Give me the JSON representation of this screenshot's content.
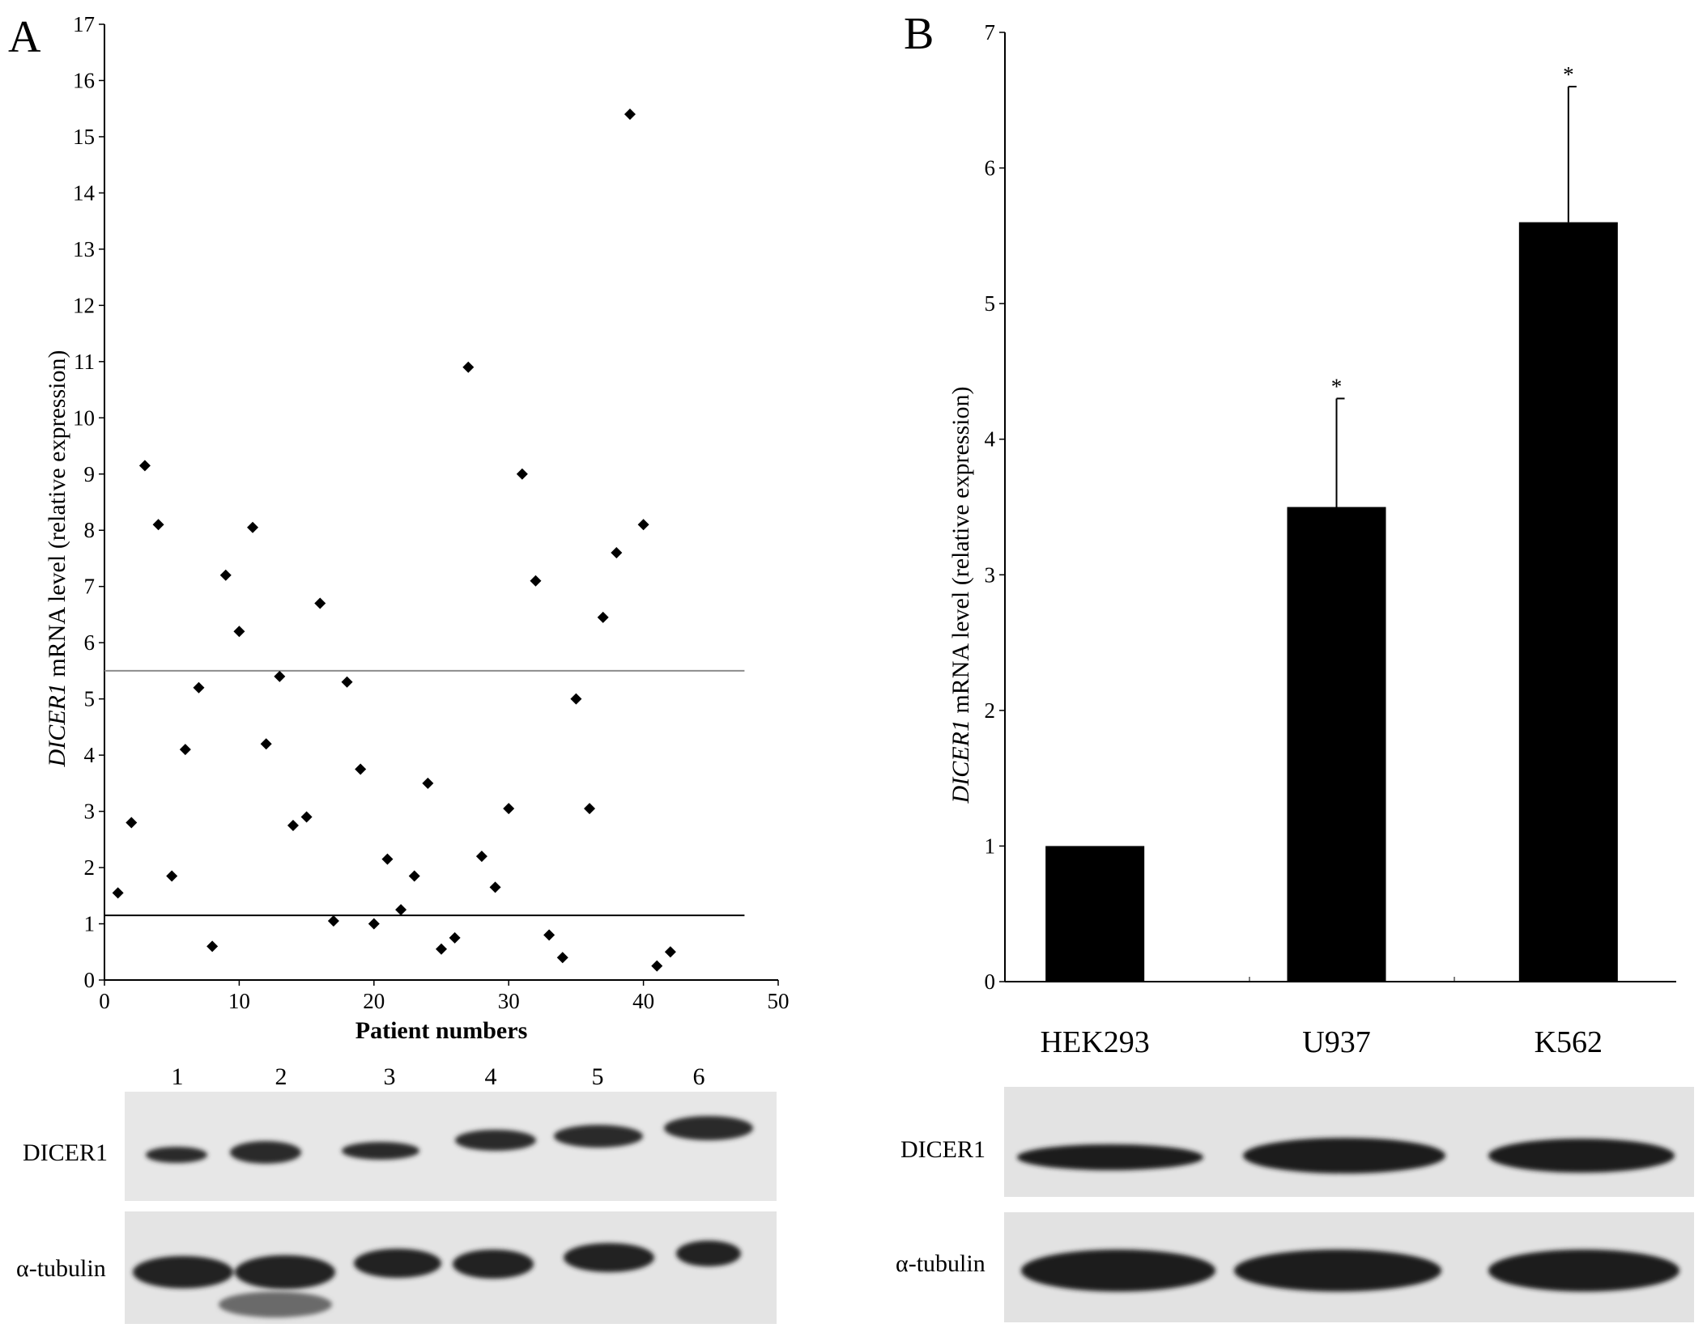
{
  "panels": {
    "a_letter": "A",
    "b_letter": "B"
  },
  "chart_data": [
    {
      "type": "scatter",
      "panel": "A",
      "title": "",
      "xlabel": "Patient numbers",
      "ylabel_italic": "DICER1",
      "ylabel_rest": " mRNA level (relative expression)",
      "xlim": [
        0,
        50
      ],
      "ylim": [
        0,
        17
      ],
      "xticks": [
        0,
        10,
        20,
        30,
        40,
        50
      ],
      "yticks": [
        0,
        1,
        2,
        3,
        4,
        5,
        6,
        7,
        8,
        9,
        10,
        11,
        12,
        13,
        14,
        15,
        16,
        17
      ],
      "marker": "diamond",
      "reference_lines": [
        {
          "y": 5.5,
          "color": "#8c8c8c"
        },
        {
          "y": 1.15,
          "color": "#000000"
        }
      ],
      "points": [
        {
          "x": 1,
          "y": 1.55
        },
        {
          "x": 2,
          "y": 2.8
        },
        {
          "x": 3,
          "y": 9.15
        },
        {
          "x": 4,
          "y": 8.1
        },
        {
          "x": 5,
          "y": 1.85
        },
        {
          "x": 6,
          "y": 4.1
        },
        {
          "x": 7,
          "y": 5.2
        },
        {
          "x": 8,
          "y": 0.6
        },
        {
          "x": 9,
          "y": 7.2
        },
        {
          "x": 10,
          "y": 6.2
        },
        {
          "x": 11,
          "y": 8.05
        },
        {
          "x": 12,
          "y": 4.2
        },
        {
          "x": 13,
          "y": 5.4
        },
        {
          "x": 14,
          "y": 2.75
        },
        {
          "x": 15,
          "y": 2.9
        },
        {
          "x": 16,
          "y": 6.7
        },
        {
          "x": 17,
          "y": 1.05
        },
        {
          "x": 18,
          "y": 5.3
        },
        {
          "x": 19,
          "y": 3.75
        },
        {
          "x": 20,
          "y": 1.0
        },
        {
          "x": 21,
          "y": 2.15
        },
        {
          "x": 22,
          "y": 1.25
        },
        {
          "x": 23,
          "y": 1.85
        },
        {
          "x": 24,
          "y": 3.5
        },
        {
          "x": 25,
          "y": 0.55
        },
        {
          "x": 26,
          "y": 0.75
        },
        {
          "x": 27,
          "y": 10.9
        },
        {
          "x": 28,
          "y": 2.2
        },
        {
          "x": 29,
          "y": 1.65
        },
        {
          "x": 30,
          "y": 3.05
        },
        {
          "x": 31,
          "y": 9.0
        },
        {
          "x": 32,
          "y": 7.1
        },
        {
          "x": 33,
          "y": 0.8
        },
        {
          "x": 34,
          "y": 0.4
        },
        {
          "x": 35,
          "y": 5.0
        },
        {
          "x": 36,
          "y": 3.05
        },
        {
          "x": 37,
          "y": 6.45
        },
        {
          "x": 38,
          "y": 7.6
        },
        {
          "x": 39,
          "y": 15.4
        },
        {
          "x": 40,
          "y": 8.1
        },
        {
          "x": 41,
          "y": 0.25
        },
        {
          "x": 42,
          "y": 0.5
        }
      ]
    },
    {
      "type": "bar",
      "panel": "B",
      "title": "",
      "xlabel": "",
      "ylabel_italic": "DICER1",
      "ylabel_rest": " mRNA level (relative expression)",
      "ylim": [
        0,
        7
      ],
      "yticks": [
        0,
        1,
        2,
        3,
        4,
        5,
        6,
        7
      ],
      "categories": [
        "HEK293",
        "U937",
        "K562"
      ],
      "values": [
        1.0,
        3.5,
        5.6
      ],
      "errors": [
        null,
        0.8,
        1.0
      ],
      "significance": [
        "",
        "*",
        "*"
      ],
      "bar_color": "#000000"
    }
  ],
  "blots": {
    "a": {
      "lane_numbers": [
        "1",
        "2",
        "3",
        "4",
        "5",
        "6"
      ],
      "row1_label": "DICER1",
      "row2_label": "α-tubulin"
    },
    "b": {
      "row1_label": "DICER1",
      "row2_label": "α-tubulin"
    }
  }
}
